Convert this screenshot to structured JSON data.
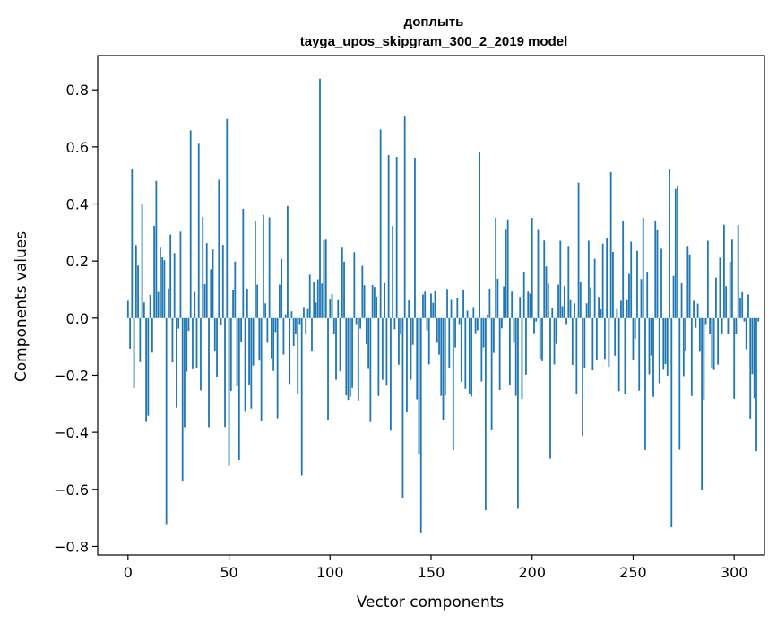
{
  "chart_data": {
    "type": "bar",
    "title": "доплыть",
    "subtitle": "tayga_upos_skipgram_300_2_2019 model",
    "xlabel": "Vector components",
    "ylabel": "Components values",
    "xlim": [
      -15,
      315
    ],
    "ylim": [
      -0.83,
      0.92
    ],
    "xticks": [
      0,
      50,
      100,
      150,
      200,
      250,
      300
    ],
    "yticks": [
      -0.8,
      -0.6,
      -0.4,
      -0.2,
      0.0,
      0.2,
      0.4,
      0.6,
      0.8
    ],
    "ytick_labels": [
      "−0.8",
      "−0.6",
      "−0.4",
      "−0.2",
      "0.0",
      "0.2",
      "0.4",
      "0.6",
      "0.8"
    ],
    "xtick_labels": [
      "0",
      "50",
      "100",
      "150",
      "200",
      "250",
      "300"
    ],
    "bar_color": "#1f77b4",
    "grid": false,
    "values": [
      0.061,
      -0.107,
      0.521,
      -0.245,
      0.256,
      0.184,
      -0.154,
      0.398,
      0.055,
      -0.364,
      -0.342,
      0.081,
      -0.121,
      0.323,
      0.481,
      0.092,
      0.247,
      0.213,
      0.203,
      -0.725,
      0.104,
      0.293,
      -0.155,
      0.228,
      -0.314,
      -0.037,
      0.303,
      -0.572,
      -0.382,
      -0.188,
      -0.045,
      0.658,
      -0.179,
      0.092,
      -0.175,
      0.611,
      -0.253,
      0.354,
      0.119,
      0.263,
      -0.382,
      0.171,
      0.241,
      -0.116,
      -0.206,
      0.485,
      -0.023,
      0.257,
      -0.381,
      0.698,
      -0.518,
      -0.255,
      0.097,
      0.198,
      -0.237,
      -0.497,
      -0.082,
      0.383,
      -0.326,
      0.103,
      -0.233,
      -0.317,
      -0.166,
      0.341,
      0.117,
      -0.149,
      -0.362,
      0.362,
      0.052,
      -0.087,
      0.353,
      -0.141,
      -0.185,
      -0.049,
      -0.351,
      0.117,
      0.207,
      -0.128,
      0.013,
      0.393,
      -0.231,
      0.024,
      -0.098,
      -0.057,
      -0.266,
      -0.021,
      -0.552,
      0.039,
      -0.054,
      0.032,
      0.152,
      -0.117,
      0.128,
      0.055,
      0.136,
      0.839,
      0.121,
      0.273,
      0.275,
      -0.358,
      0.065,
      0.085,
      -0.057,
      -0.216,
      0.063,
      -0.186,
      0.247,
      0.198,
      -0.271,
      -0.287,
      -0.276,
      -0.245,
      0.231,
      -0.021,
      -0.289,
      -0.037,
      0.183,
      0.115,
      -0.092,
      -0.178,
      -0.364,
      0.116,
      0.109,
      0.075,
      -0.273,
      0.661,
      -0.216,
      0.123,
      -0.234,
      0.571,
      -0.394,
      0.323,
      -0.039,
      0.565,
      -0.163,
      -0.056,
      -0.631,
      0.709,
      -0.328,
      0.062,
      -0.216,
      -0.094,
      0.562,
      -0.285,
      -0.475,
      -0.751,
      0.083,
      0.093,
      -0.043,
      -0.162,
      0.086,
      0.054,
      0.094,
      -0.087,
      -0.128,
      -0.273,
      -0.356,
      -0.271,
      0.102,
      -0.175,
      0.064,
      -0.463,
      -0.103,
      0.072,
      -0.021,
      -0.223,
      0.097,
      -0.248,
      0.026,
      -0.265,
      -0.275,
      0.039,
      -0.053,
      -0.043,
      0.582,
      -0.222,
      -0.103,
      -0.673,
      0.013,
      0.103,
      -0.393,
      -0.122,
      0.352,
      0.138,
      -0.252,
      -0.036,
      0.111,
      0.313,
      0.346,
      -0.233,
      0.093,
      -0.087,
      -0.273,
      -0.668,
      0.074,
      -0.284,
      0.163,
      -0.198,
      0.093,
      0.086,
      0.351,
      -0.053,
      -0.012,
      0.312,
      -0.142,
      -0.151,
      0.272,
      0.181,
      0.121,
      -0.493,
      0.035,
      -0.162,
      -0.091,
      0.117,
      0.271,
      0.042,
      0.112,
      -0.021,
      0.253,
      0.063,
      -0.164,
      0.052,
      -0.265,
      0.475,
      0.127,
      -0.413,
      -0.174,
      0.052,
      0.271,
      0.108,
      -0.183,
      0.208,
      -0.148,
      0.074,
      0.031,
      0.261,
      -0.143,
      0.282,
      -0.171,
      0.512,
      0.232,
      -0.132,
      0.032,
      -0.256,
      0.061,
      0.342,
      -0.267,
      0.063,
      0.155,
      0.268,
      -0.148,
      -0.072,
      0.236,
      -0.254,
      0.137,
      0.352,
      -0.462,
      0.163,
      -0.197,
      -0.131,
      -0.276,
      0.342,
      0.311,
      -0.228,
      0.243,
      -0.181,
      -0.161,
      -0.202,
      0.524,
      -0.733,
      0.148,
      0.453,
      0.462,
      -0.461,
      0.122,
      -0.203,
      -0.116,
      0.253,
      0.223,
      -0.273,
      0.061,
      -0.034,
      0.051,
      -0.118,
      -0.602,
      -0.286,
      -0.021,
      0.271,
      -0.056,
      -0.176,
      -0.182,
      0.142,
      -0.163,
      0.212,
      -0.057,
      0.327,
      0.112,
      -0.056,
      0.197,
      0.275,
      -0.283,
      -0.055,
      0.326,
      0.072,
      0.091,
      -0.012,
      -0.109,
      0.083,
      -0.352,
      -0.196,
      -0.281,
      -0.466,
      -0.012
    ]
  }
}
